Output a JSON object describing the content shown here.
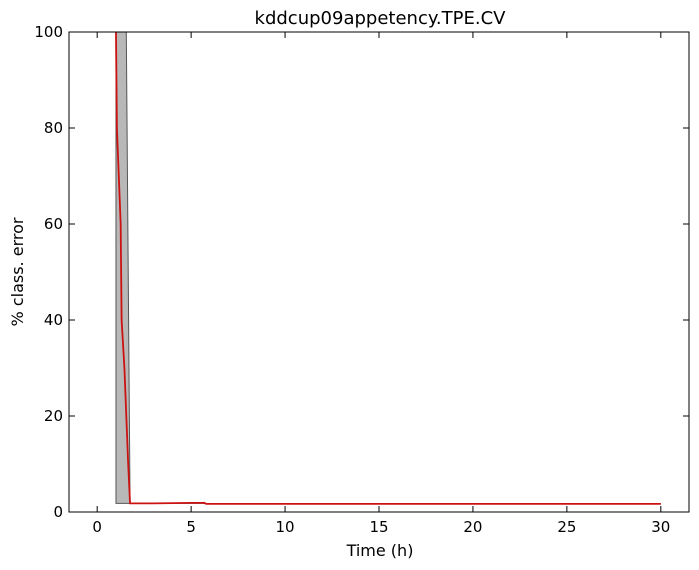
{
  "chart_data": {
    "type": "line",
    "title": "kddcup09appetency.TPE.CV",
    "xlabel": "Time (h)",
    "ylabel": "% class. error",
    "xlim": [
      -1.5,
      31.5
    ],
    "ylim": [
      0,
      100
    ],
    "xticks": [
      0,
      5,
      10,
      15,
      20,
      25,
      30
    ],
    "yticks": [
      0,
      20,
      40,
      60,
      80,
      100
    ],
    "grid": false,
    "colors": {
      "line": "#cc1111",
      "band_fill": "#b8b8b8",
      "band_edge": "#555555"
    },
    "series": [
      {
        "x": [
          1.0,
          1.05,
          1.15,
          1.25,
          1.3,
          1.45,
          1.55,
          1.65,
          1.75,
          3.0,
          5.0,
          5.7,
          5.8,
          10,
          15,
          20,
          25,
          30
        ],
        "y": [
          100,
          80,
          70,
          60,
          40,
          30,
          20,
          10,
          1.8,
          1.8,
          1.9,
          1.9,
          1.7,
          1.7,
          1.7,
          1.7,
          1.7,
          1.7
        ]
      }
    ],
    "band": {
      "x": [
        1.0,
        1.05,
        1.45,
        1.55,
        1.75,
        3.0,
        5.0,
        5.7,
        5.8,
        10,
        15,
        20,
        25,
        30
      ],
      "upper": [
        100,
        100,
        100,
        100,
        1.8,
        1.8,
        1.9,
        2.0,
        1.7,
        1.7,
        1.7,
        1.7,
        1.7,
        1.7
      ],
      "lower": [
        1.8,
        1.8,
        1.8,
        1.8,
        1.8,
        1.8,
        1.8,
        1.8,
        1.7,
        1.7,
        1.7,
        1.7,
        1.7,
        1.7
      ]
    }
  }
}
